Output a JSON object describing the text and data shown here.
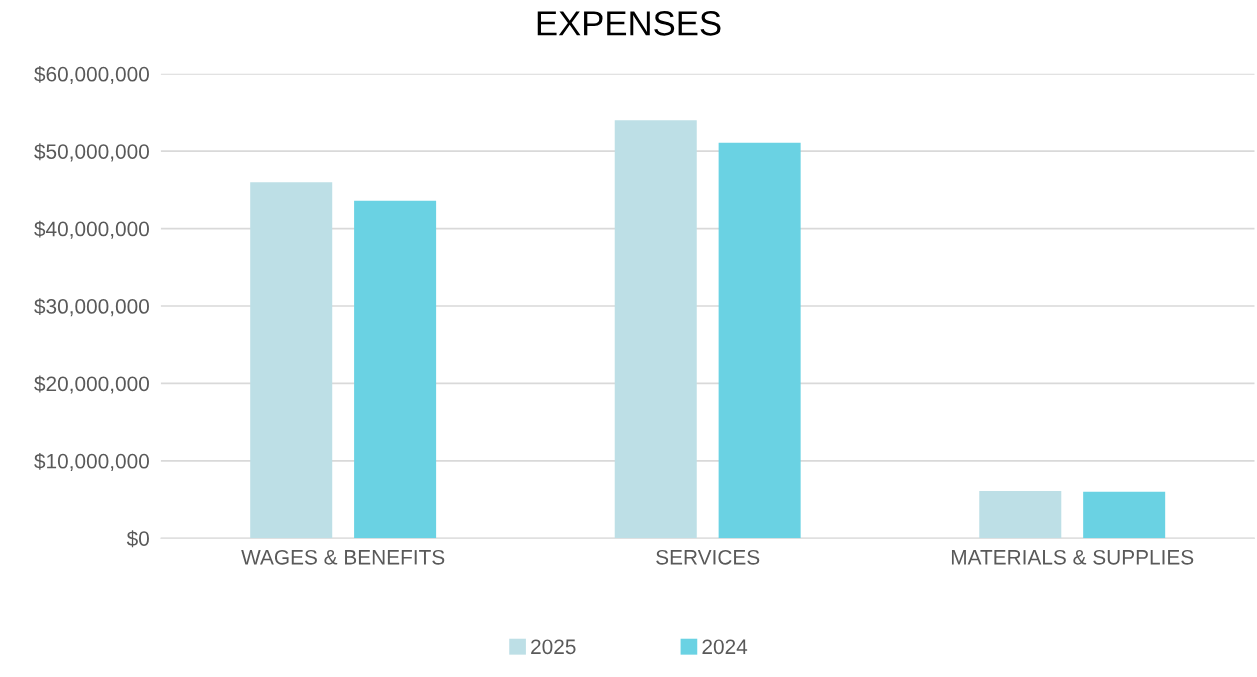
{
  "chart_data": {
    "type": "bar",
    "title": "EXPENSES",
    "categories": [
      "WAGES & BENEFITS",
      "SERVICES",
      "MATERIALS & SUPPLIES"
    ],
    "series": [
      {
        "name": "2025",
        "color": "#bddfe6",
        "values": [
          46000000,
          54000000,
          6100000
        ]
      },
      {
        "name": "2024",
        "color": "#6ad2e3",
        "values": [
          43600000,
          51100000,
          6000000
        ]
      }
    ],
    "ylim": [
      0,
      60000000
    ],
    "yticks": [
      {
        "value": 0,
        "label": "$0"
      },
      {
        "value": 10000000,
        "label": "$10,000,000"
      },
      {
        "value": 20000000,
        "label": "$20,000,000"
      },
      {
        "value": 30000000,
        "label": "$30,000,000"
      },
      {
        "value": 40000000,
        "label": "$40,000,000"
      },
      {
        "value": 50000000,
        "label": "$50,000,000"
      },
      {
        "value": 60000000,
        "label": "$60,000,000"
      }
    ],
    "grid": "y",
    "legend": "bottom"
  }
}
